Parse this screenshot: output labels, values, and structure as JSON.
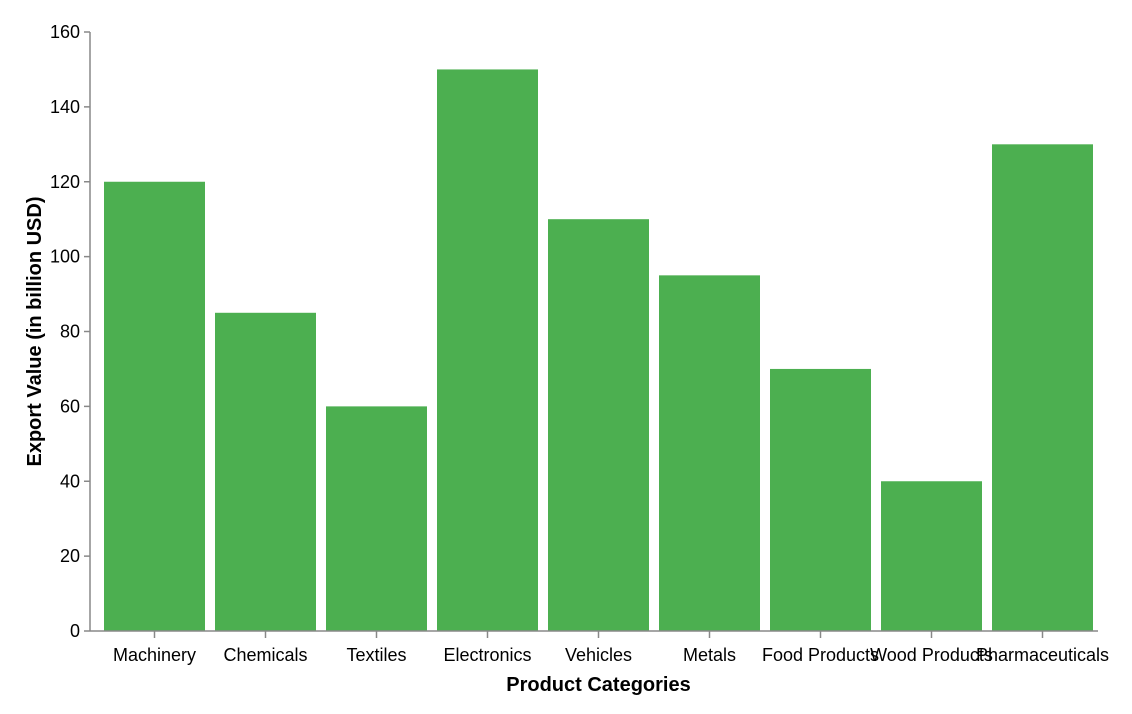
{
  "chart_data": {
    "type": "bar",
    "title": "",
    "xlabel": "Product Categories",
    "ylabel": "Export Value (in billion USD)",
    "categories": [
      "Machinery",
      "Chemicals",
      "Textiles",
      "Electronics",
      "Vehicles",
      "Metals",
      "Food Products",
      "Wood Products",
      "Pharmaceuticals"
    ],
    "values": [
      120,
      85,
      60,
      150,
      110,
      95,
      70,
      40,
      130
    ],
    "ylim": [
      0,
      160
    ],
    "yticks": [
      0,
      20,
      40,
      60,
      80,
      100,
      120,
      140,
      160
    ],
    "grid": false,
    "legend": "none",
    "colors": {
      "bar": "#4caf50",
      "axis": "#888888",
      "text": "#000000"
    }
  }
}
